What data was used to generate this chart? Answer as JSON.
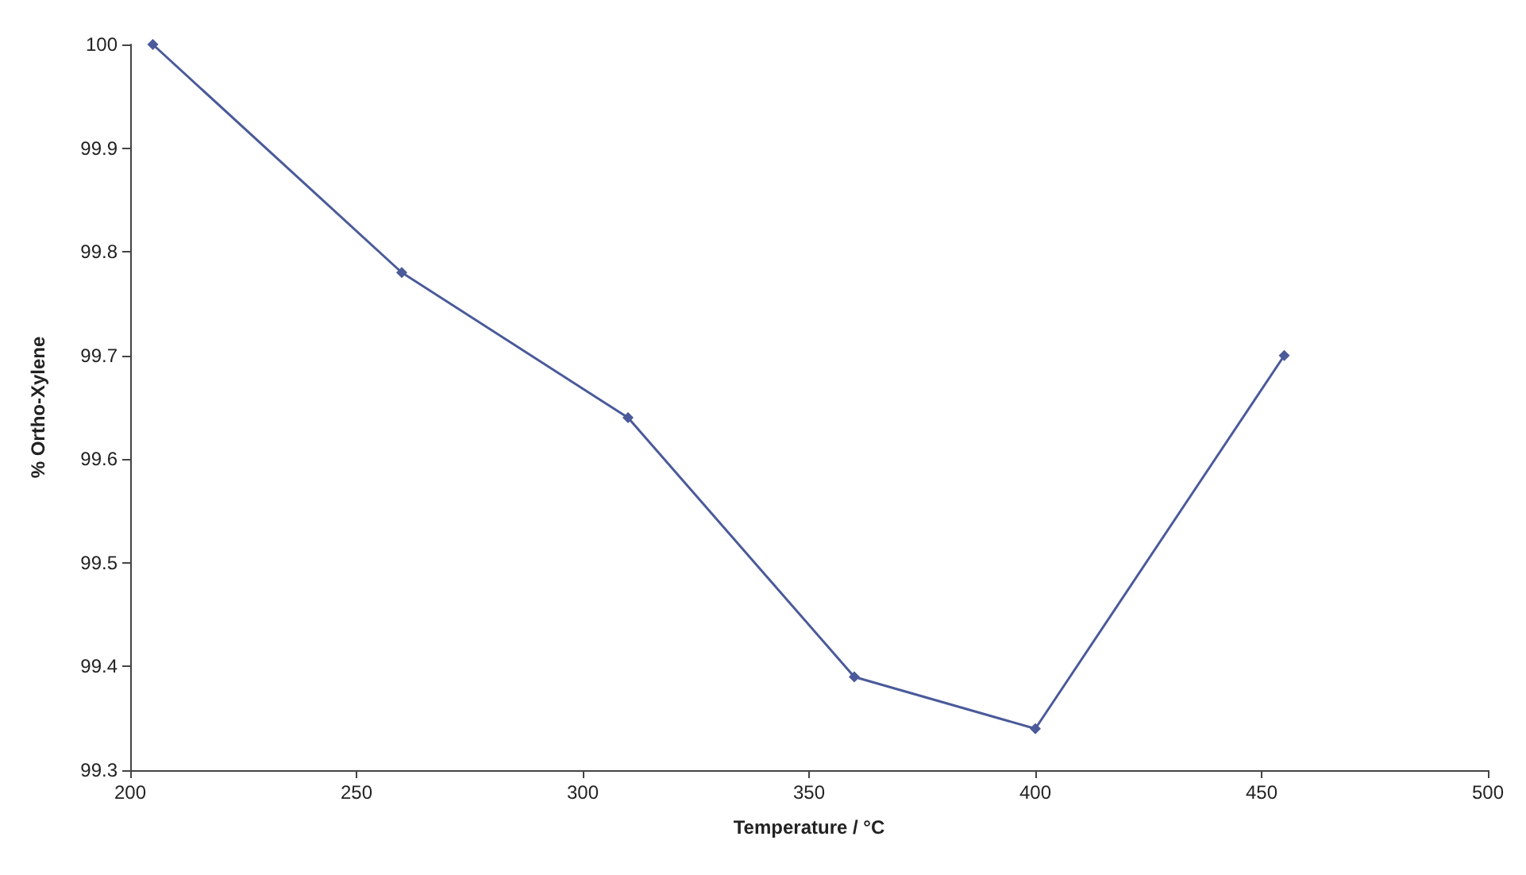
{
  "chart_data": {
    "type": "line",
    "xlabel": "Temperature / °C",
    "ylabel": "% Ortho-Xylene",
    "x": [
      205,
      260,
      310,
      360,
      400,
      455
    ],
    "series": [
      {
        "color": "#4a5a9a",
        "values": [
          100,
          99.78,
          99.64,
          99.39,
          99.34,
          99.7
        ]
      }
    ],
    "xlim": [
      200,
      500
    ],
    "xticks": [
      200,
      250,
      300,
      350,
      400,
      450,
      500
    ],
    "ylim": [
      99.3,
      100
    ],
    "yticks": [
      99.3,
      99.4,
      99.5,
      99.6,
      99.7,
      99.8,
      99.9,
      100
    ],
    "grid": false,
    "marker": "diamond",
    "line_style": "solid"
  }
}
